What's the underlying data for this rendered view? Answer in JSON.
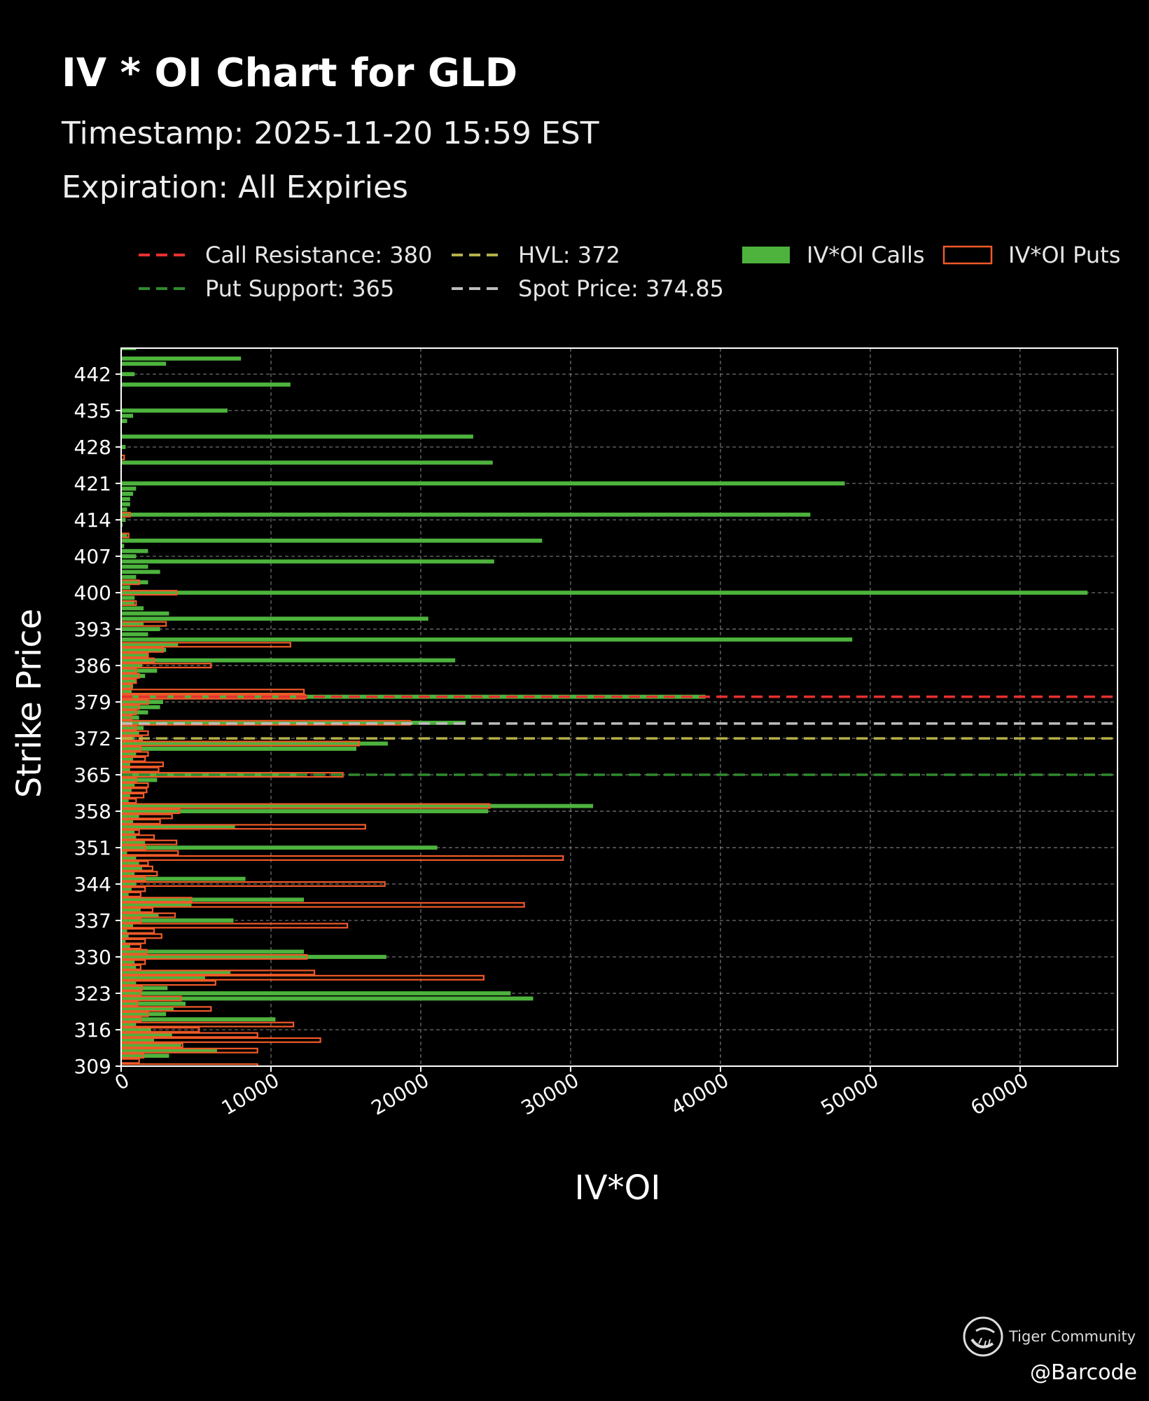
{
  "header": {
    "title": "IV * OI Chart for GLD",
    "timestamp": "Timestamp: 2025-11-20 15:59 EST",
    "expiration": "Expiration: All Expiries"
  },
  "watermark": {
    "brand": "Tiger Community",
    "handle": "@Barcode"
  },
  "colors": {
    "background": "#000000",
    "calls": "#4db33d",
    "puts": "#f05a28",
    "call_resistance": "#e83030",
    "put_support": "#2e8b2e",
    "hvl": "#b5b04a",
    "spot": "#bdbdbd",
    "grid": "#8a8a8a"
  },
  "chart_data": {
    "type": "bar",
    "orientation": "horizontal",
    "xlabel": "IV*OI",
    "ylabel": "Strike Price",
    "xlim": [
      0,
      66500
    ],
    "ylim": [
      309,
      447
    ],
    "xticks": [
      0,
      10000,
      20000,
      30000,
      40000,
      50000,
      60000
    ],
    "yticks": [
      309,
      316,
      323,
      330,
      337,
      344,
      351,
      358,
      365,
      372,
      379,
      386,
      393,
      400,
      407,
      414,
      421,
      428,
      435,
      442
    ],
    "grid": true,
    "legend": [
      {
        "label": "Call Resistance: 380",
        "kind": "dashed",
        "color": "#e83030"
      },
      {
        "label": "HVL: 372",
        "kind": "dashed",
        "color": "#b5b04a"
      },
      {
        "label": "IV*OI Calls",
        "kind": "filled",
        "color": "#4db33d"
      },
      {
        "label": "IV*OI Puts",
        "kind": "outline",
        "color": "#f05a28"
      },
      {
        "label": "Put Support: 365",
        "kind": "dashed",
        "color": "#2e8b2e"
      },
      {
        "label": "Spot Price: 374.85",
        "kind": "dashed",
        "color": "#bdbdbd"
      }
    ],
    "reference_lines": [
      {
        "name": "Call Resistance",
        "value": 380,
        "color": "#e83030"
      },
      {
        "name": "Spot Price",
        "value": 374.85,
        "color": "#bdbdbd"
      },
      {
        "name": "HVL",
        "value": 372,
        "color": "#b5b04a"
      },
      {
        "name": "Put Support",
        "value": 365,
        "color": "#2e8b2e"
      }
    ],
    "series": [
      {
        "name": "IV*OI Calls",
        "strikes": [
          447,
          445,
          444,
          442,
          440,
          435,
          434,
          433,
          430,
          428,
          425,
          421,
          420,
          419,
          418,
          417,
          416,
          415,
          414,
          413,
          411,
          410,
          409,
          408,
          407,
          406,
          405,
          404,
          403,
          402,
          401,
          400,
          399,
          398,
          397,
          396,
          395,
          394,
          393,
          392,
          391,
          390,
          389,
          388,
          387,
          386,
          385,
          384,
          383,
          382,
          381,
          380,
          379,
          378,
          377,
          376,
          375,
          374,
          373,
          372,
          371,
          370,
          369,
          368,
          367,
          366,
          365,
          364,
          363,
          362,
          361,
          360,
          359,
          358,
          357,
          356,
          355,
          354,
          353,
          352,
          351,
          350,
          349,
          348,
          347,
          346,
          345,
          344,
          343,
          342,
          341,
          340,
          339,
          338,
          337,
          336,
          335,
          334,
          333,
          332,
          331,
          330,
          329,
          328,
          327,
          326,
          325,
          324,
          323,
          322,
          321,
          320,
          319,
          318,
          317,
          316,
          315,
          314,
          313,
          312,
          311,
          310,
          309
        ],
        "values": [
          1000,
          8000,
          3000,
          900,
          11300,
          7100,
          800,
          400,
          23500,
          300,
          24800,
          48300,
          1000,
          800,
          600,
          600,
          400,
          46000,
          300,
          100,
          400,
          28100,
          200,
          1800,
          1000,
          24900,
          1800,
          2600,
          1000,
          1800,
          600,
          64500,
          900,
          900,
          1500,
          3200,
          20500,
          1500,
          2600,
          1800,
          48800,
          3800,
          3000,
          1800,
          22300,
          1400,
          2400,
          1600,
          1000,
          800,
          700,
          39000,
          2800,
          2600,
          1800,
          1200,
          23000,
          1500,
          1200,
          900,
          17800,
          15700,
          1000,
          800,
          600,
          600,
          11800,
          2400,
          900,
          700,
          600,
          500,
          31500,
          24500,
          1200,
          800,
          7600,
          900,
          1000,
          1600,
          21100,
          400,
          1000,
          1200,
          1400,
          900,
          8300,
          1000,
          700,
          500,
          12200,
          4700,
          1300,
          2500,
          7500,
          800,
          400,
          500,
          300,
          600,
          12200,
          17700,
          900,
          1000,
          7300,
          5600,
          1000,
          3100,
          26000,
          27500,
          4300,
          3500,
          3000,
          10300,
          1000,
          2000,
          3400,
          2200,
          4000,
          6400,
          3200
        ]
      },
      {
        "name": "IV*OI Puts",
        "strikes": [
          426,
          415,
          411,
          402,
          400,
          398,
          394,
          390,
          389,
          388,
          387,
          386,
          385,
          384,
          383,
          382,
          381,
          380,
          379,
          378,
          377,
          376,
          375,
          374,
          373,
          372,
          371,
          370,
          369,
          368,
          367,
          366,
          365,
          364,
          363,
          362,
          361,
          360,
          359,
          358,
          357,
          356,
          355,
          354,
          353,
          352,
          351,
          350,
          349,
          348,
          347,
          346,
          345,
          344,
          343,
          342,
          341,
          340,
          339,
          338,
          337,
          336,
          335,
          334,
          333,
          332,
          331,
          330,
          329,
          328,
          327,
          326,
          325,
          324,
          323,
          322,
          321,
          320,
          319,
          318,
          317,
          316,
          315,
          314,
          313,
          312,
          311,
          310,
          309
        ],
        "values": [
          200,
          600,
          500,
          1200,
          3700,
          1000,
          3000,
          11300,
          2800,
          1800,
          2200,
          6000,
          1000,
          1200,
          1000,
          700,
          12200,
          12300,
          1800,
          1200,
          1000,
          700,
          19300,
          1000,
          1800,
          1400,
          15900,
          1300,
          1800,
          1600,
          2800,
          2500,
          14800,
          1000,
          1800,
          1700,
          1500,
          1000,
          24600,
          3900,
          3400,
          2600,
          16300,
          1200,
          2200,
          3700,
          1600,
          3800,
          29500,
          1800,
          2100,
          2400,
          1600,
          17600,
          1600,
          1300,
          4700,
          26900,
          2100,
          3600,
          1300,
          15100,
          2200,
          2700,
          1600,
          1300,
          1700,
          12400,
          1600,
          1300,
          12900,
          24200,
          6300,
          1400,
          1300,
          4000,
          1100,
          6000,
          1800,
          1300,
          11500,
          5200,
          9100,
          13300,
          4100,
          9100,
          1500,
          1200,
          9100
        ]
      }
    ]
  }
}
